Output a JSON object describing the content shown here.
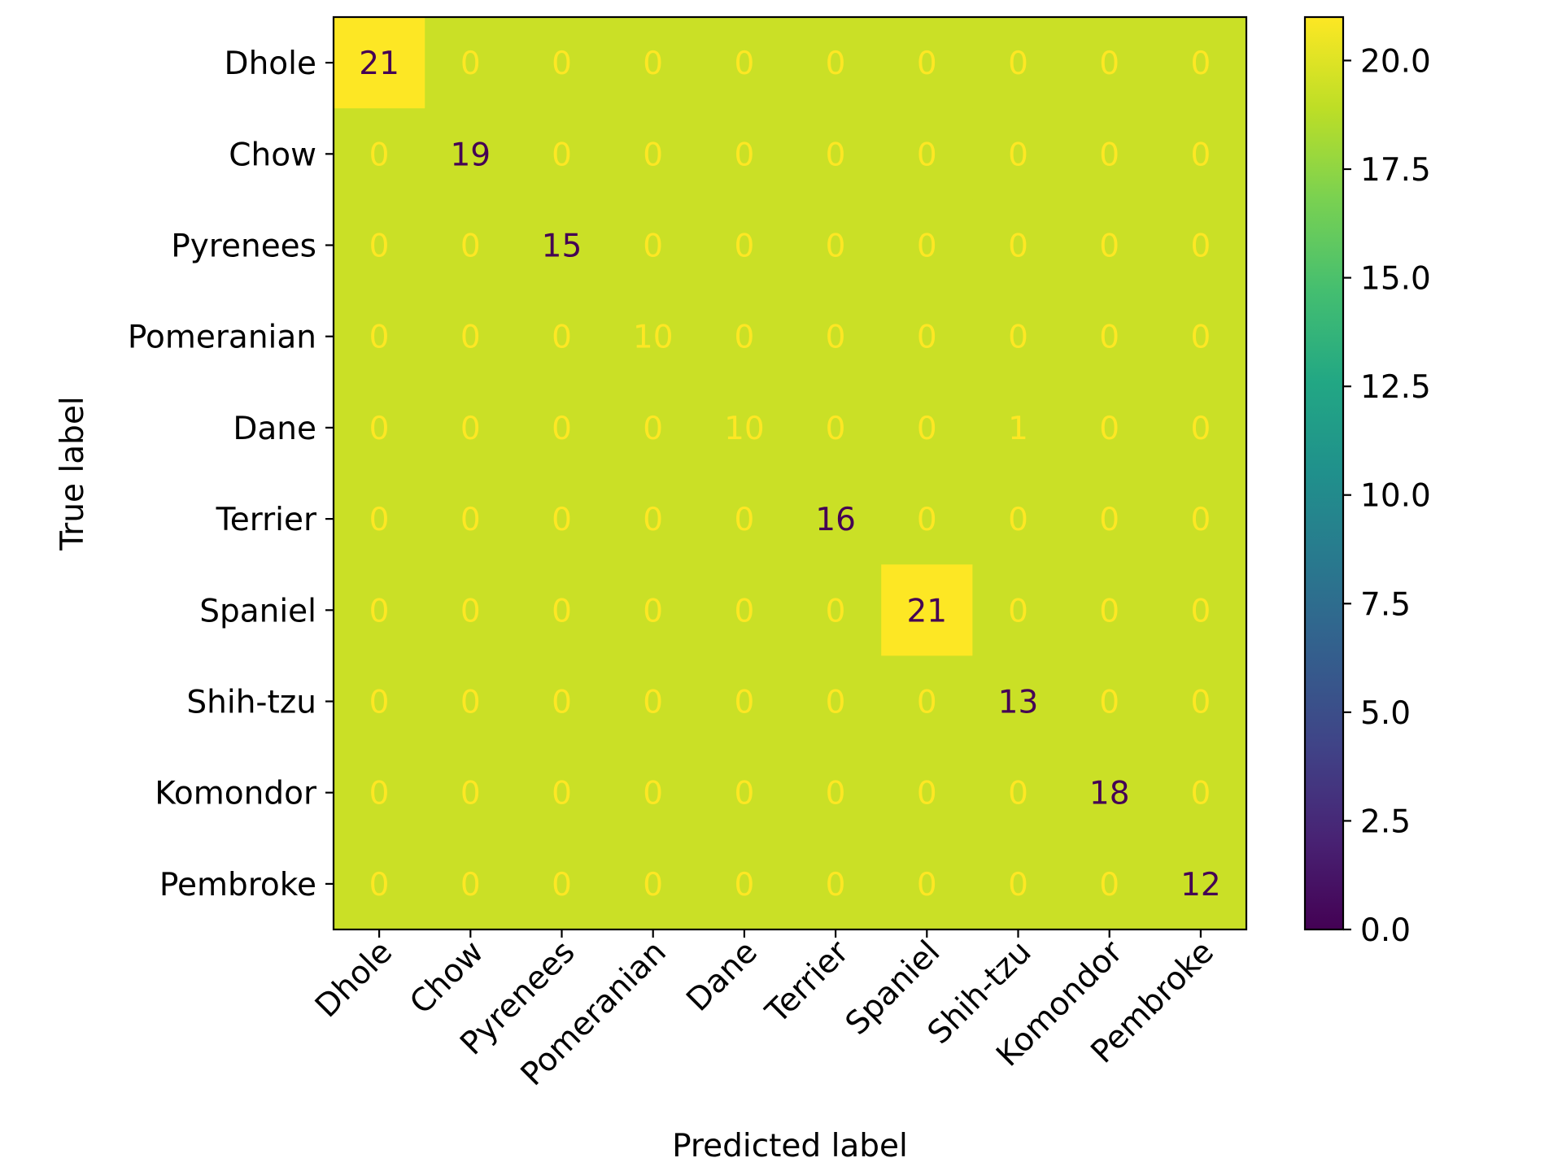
{
  "chart_data": {
    "type": "heatmap",
    "title": "",
    "xlabel": "Predicted label",
    "ylabel": "True label",
    "x_categories": [
      "Dhole",
      "Chow",
      "Pyrenees",
      "Pomeranian",
      "Dane",
      "Terrier",
      "Spaniel",
      "Shih-tzu",
      "Komondor",
      "Pembroke"
    ],
    "y_categories": [
      "Dhole",
      "Chow",
      "Pyrenees",
      "Pomeranian",
      "Dane",
      "Terrier",
      "Spaniel",
      "Shih-tzu",
      "Komondor",
      "Pembroke"
    ],
    "matrix": [
      [
        21,
        0,
        0,
        0,
        0,
        0,
        0,
        0,
        0,
        0
      ],
      [
        0,
        19,
        0,
        0,
        0,
        0,
        0,
        0,
        0,
        0
      ],
      [
        0,
        0,
        15,
        0,
        0,
        0,
        0,
        0,
        0,
        0
      ],
      [
        0,
        0,
        0,
        10,
        0,
        0,
        0,
        0,
        0,
        0
      ],
      [
        0,
        0,
        0,
        0,
        10,
        0,
        0,
        1,
        0,
        0
      ],
      [
        0,
        0,
        0,
        0,
        0,
        16,
        0,
        0,
        0,
        0
      ],
      [
        0,
        0,
        0,
        0,
        0,
        0,
        21,
        0,
        0,
        0
      ],
      [
        0,
        0,
        0,
        0,
        0,
        0,
        0,
        13,
        0,
        0
      ],
      [
        0,
        0,
        0,
        0,
        0,
        0,
        0,
        0,
        18,
        0
      ],
      [
        0,
        0,
        0,
        0,
        0,
        0,
        0,
        0,
        0,
        12
      ]
    ],
    "colormap": "viridis",
    "colorbar": {
      "range": [
        0,
        21
      ],
      "ticks": [
        0.0,
        2.5,
        5.0,
        7.5,
        10.0,
        12.5,
        15.0,
        17.5,
        20.0
      ],
      "tick_labels": [
        "0.0",
        "2.5",
        "5.0",
        "7.5",
        "10.0",
        "12.5",
        "15.0",
        "17.5",
        "20.0"
      ]
    },
    "x_tick_rotation_deg": 45,
    "grid": false
  }
}
